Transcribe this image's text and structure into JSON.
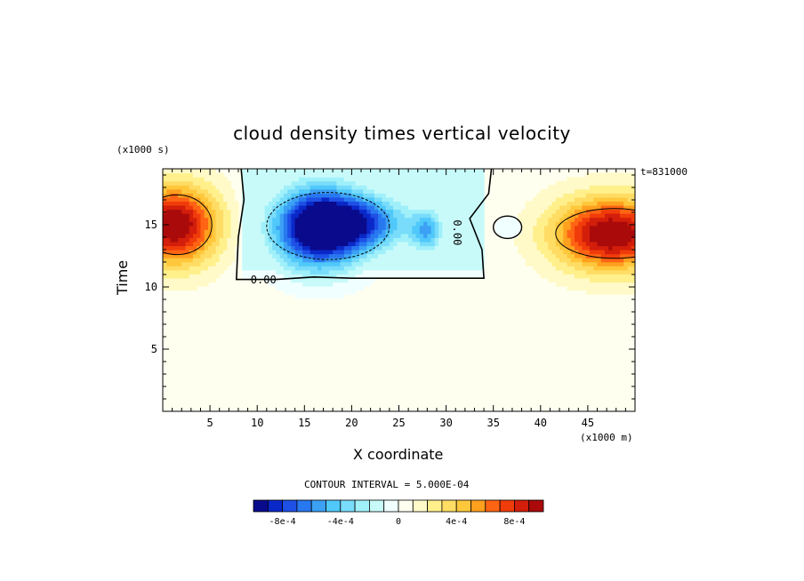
{
  "chart_data": {
    "type": "heatmap",
    "title": "cloud density times vertical velocity",
    "xlabel": "X coordinate",
    "ylabel": "Time",
    "x_unit": "(x1000 m)",
    "y_unit": "(x1000 s)",
    "time_stamp": "t=831000",
    "contour_interval_label": "CONTOUR INTERVAL = 5.000E-04",
    "xlim": [
      0,
      50
    ],
    "ylim": [
      0,
      19.5
    ],
    "x_ticks": [
      5,
      10,
      15,
      20,
      25,
      30,
      35,
      40,
      45
    ],
    "y_ticks": [
      5,
      10,
      15
    ],
    "contour_line_labels": [
      "0.00",
      "0.00"
    ],
    "colorbar": {
      "levels": [
        -0.001,
        -0.0009,
        -0.0008,
        -0.0007,
        -0.0006,
        -0.0005,
        -0.0004,
        -0.0003,
        -0.0002,
        -0.0001,
        0,
        0.0001,
        0.0002,
        0.0003,
        0.0004,
        0.0005,
        0.0006,
        0.0007,
        0.0008,
        0.0009,
        0.001
      ],
      "tick_labels": [
        "-8e-4",
        "-4e-4",
        "0",
        "4e-4",
        "8e-4"
      ],
      "tick_values": [
        -0.0008,
        -0.0004,
        0,
        0.0004,
        0.0008
      ],
      "colors": [
        "#0a0a8c",
        "#0a28c8",
        "#1e50e6",
        "#2878f0",
        "#3ca0f5",
        "#50c8fa",
        "#78dcfa",
        "#a0f0fa",
        "#c8fafa",
        "#f0ffff",
        "#fffff0",
        "#fffac8",
        "#fff08c",
        "#ffdc64",
        "#ffc83c",
        "#ffa01e",
        "#ff6414",
        "#f03c0a",
        "#d21e0a",
        "#aa0a0a"
      ]
    },
    "features": [
      {
        "name": "positive-core-left",
        "x": 1.5,
        "y": 15,
        "peak": 0.0009
      },
      {
        "name": "negative-core-center",
        "x": 16,
        "y": 14.8,
        "peak": -0.0011
      },
      {
        "name": "negative-patch",
        "x": 28,
        "y": 14.4,
        "peak": -0.0004
      },
      {
        "name": "small-negative-bubble",
        "x": 36.5,
        "y": 14.8,
        "peak": -0.0001
      },
      {
        "name": "positive-core-right",
        "x": 47,
        "y": 14.2,
        "peak": 0.0009
      }
    ],
    "zero_region": {
      "x_range": [
        8,
        34
      ],
      "y_range": [
        10.5,
        19.5
      ]
    }
  }
}
